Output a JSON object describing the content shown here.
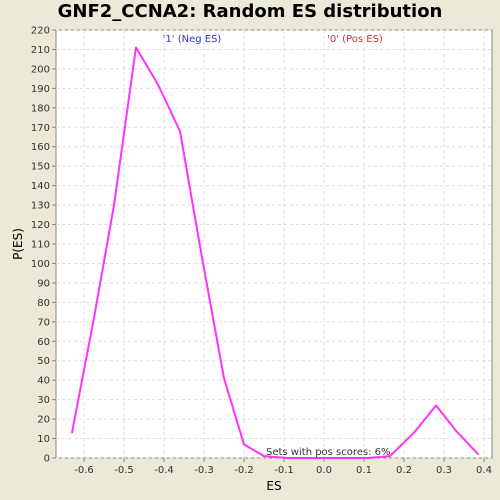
{
  "chart_data": {
    "type": "line",
    "title": "GNF2_CCNA2: Random ES distribution",
    "xlabel": "ES",
    "ylabel": "P(ES)",
    "xlim": [
      -0.67,
      0.42
    ],
    "ylim": [
      0,
      220
    ],
    "x_ticks": [
      -0.6,
      -0.5,
      -0.4,
      -0.3,
      -0.2,
      -0.1,
      0.0,
      0.1,
      0.2,
      0.3,
      0.4
    ],
    "y_ticks": [
      0,
      10,
      20,
      30,
      40,
      50,
      60,
      70,
      80,
      90,
      100,
      110,
      120,
      130,
      140,
      150,
      160,
      170,
      180,
      190,
      200,
      210,
      220
    ],
    "grid": true,
    "legend": [
      {
        "label": "'1' (Neg ES)",
        "color": "#3333cc"
      },
      {
        "label": "'0' (Pos ES)",
        "color": "#cc3333"
      }
    ],
    "annotation": "Sets with pos scores: 6%",
    "series": [
      {
        "color": "#ff33ff",
        "x": [
          -0.63,
          -0.575,
          -0.525,
          -0.47,
          -0.415,
          -0.36,
          -0.305,
          -0.25,
          -0.2,
          -0.15,
          -0.09,
          -0.04,
          0.02,
          0.065,
          0.11,
          0.165,
          0.225,
          0.28,
          0.33,
          0.385
        ],
        "y": [
          13,
          72,
          130,
          211,
          192,
          168,
          103,
          41,
          7,
          1,
          0,
          0,
          0,
          0,
          0,
          1,
          13,
          27,
          14,
          2
        ]
      }
    ]
  }
}
